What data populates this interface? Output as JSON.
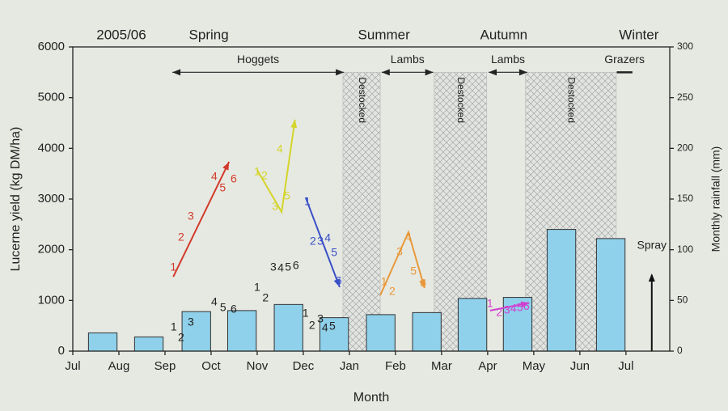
{
  "chart_data": {
    "type": "bar",
    "title": "2005/06",
    "x_label": "Month",
    "y_label": "Lucerne yield (kg DM/ha)",
    "y2_label": "Monthly rainfall (mm)",
    "xlim": [
      0,
      12.95
    ],
    "xticks": [
      {
        "value": 0,
        "label": "Jul"
      },
      {
        "value": 1,
        "label": "Aug"
      },
      {
        "value": 2,
        "label": "Sep"
      },
      {
        "value": 3,
        "label": "Oct"
      },
      {
        "value": 4,
        "label": "Nov"
      },
      {
        "value": 5,
        "label": "Dec"
      },
      {
        "value": 6,
        "label": "Jan"
      },
      {
        "value": 7,
        "label": "Feb"
      },
      {
        "value": 8,
        "label": "Mar"
      },
      {
        "value": 9,
        "label": "Apr"
      },
      {
        "value": 10,
        "label": "May"
      },
      {
        "value": 11,
        "label": "Jun"
      },
      {
        "value": 12,
        "label": "Jul"
      }
    ],
    "ylim": [
      0,
      6000
    ],
    "yticks": [
      0,
      1000,
      2000,
      3000,
      4000,
      5000,
      6000
    ],
    "y2lim": [
      0,
      300
    ],
    "y2ticks": [
      0,
      50,
      100,
      150,
      200,
      250,
      300
    ],
    "seasons": [
      {
        "label": "Spring",
        "x": 2.95
      },
      {
        "label": "Summer",
        "x": 6.75
      },
      {
        "label": "Autumn",
        "x": 9.35
      },
      {
        "label": "Winter",
        "x": 12.28
      }
    ],
    "series": [
      {
        "axis": "y2",
        "color": "#8fd0ea",
        "x": [
          0.65,
          1.65,
          2.68,
          3.67,
          4.68,
          5.67,
          6.68,
          7.68,
          8.67,
          9.65,
          10.6,
          11.67
        ],
        "values": [
          18,
          14,
          39,
          40,
          46,
          33,
          36,
          38,
          52,
          53,
          120,
          111
        ]
      }
    ],
    "destocked": [
      {
        "label": "Destocked",
        "x": [
          5.86,
          6.67
        ],
        "top": 5500
      },
      {
        "label": "Destocked",
        "x": [
          7.84,
          8.98
        ],
        "top": 5500
      },
      {
        "label": "Destocked",
        "x": [
          9.82,
          11.79
        ],
        "top": 5500
      }
    ],
    "periods": [
      {
        "label": "Hoggets",
        "x": [
          2.16,
          5.88
        ],
        "y": 5500,
        "arrows": true
      },
      {
        "label": "Lambs",
        "x": [
          6.7,
          7.82
        ],
        "y": 5500,
        "arrows": true
      },
      {
        "label": "Lambs",
        "x": [
          9.02,
          9.86
        ],
        "y": 5500,
        "arrows": true
      },
      {
        "label": "Grazers",
        "x": [
          11.8,
          12.14
        ],
        "y": 5500,
        "arrows": false
      }
    ],
    "spray": {
      "label": "Spray",
      "x": 12.56,
      "y": [
        0,
        1500
      ]
    },
    "trajectories": [
      {
        "color": "#222222",
        "labels": [
          "1",
          "2",
          "3"
        ],
        "x": [
          2.19,
          2.35,
          2.56
        ],
        "values": [
          463,
          255,
          559
        ]
      },
      {
        "color": "#222222",
        "labels": [
          "4",
          "5",
          "6"
        ],
        "x": [
          3.07,
          3.26,
          3.49
        ],
        "values": [
          958,
          846,
          814
        ]
      },
      {
        "color": "#222222",
        "labels": [
          "1",
          "2"
        ],
        "x": [
          4.0,
          4.18
        ],
        "values": [
          1245,
          1037
        ]
      },
      {
        "color": "#222222",
        "labels": [
          "3",
          "4",
          "5",
          "6"
        ],
        "x": [
          4.35,
          4.51,
          4.67,
          4.84
        ],
        "values": [
          1644,
          1628,
          1644,
          1676
        ]
      },
      {
        "color": "#222222",
        "labels": [
          "1",
          "2",
          "3",
          "4",
          "5"
        ],
        "x": [
          5.05,
          5.19,
          5.37,
          5.47,
          5.63
        ],
        "values": [
          734,
          495,
          622,
          447,
          479
        ]
      },
      {
        "color": "#d23a2a",
        "labels": [
          "1",
          "2",
          "3",
          "4",
          "5",
          "6"
        ],
        "x": [
          2.18,
          2.35,
          2.56,
          3.07,
          3.25,
          3.49
        ],
        "values": [
          1644,
          2234,
          2649,
          3431,
          3208,
          3384
        ],
        "arrow_x": [
          2.18,
          3.39
        ],
        "arrow_y": [
          1468,
          3735
        ]
      },
      {
        "color": "#d4d42a",
        "labels": [
          "1",
          "2",
          "3",
          "4",
          "5"
        ],
        "x": [
          4.0,
          4.16,
          4.39,
          4.49,
          4.65
        ],
        "values": [
          3527,
          3447,
          2841,
          3974,
          3048
        ],
        "arrow_x": [
          4.0,
          4.53,
          4.82
        ],
        "arrow_y": [
          3575,
          2745,
          4565
        ]
      },
      {
        "color": "#3a50c8",
        "labels": [
          "1",
          "2",
          "3",
          "4",
          "5",
          "6"
        ],
        "x": [
          5.09,
          5.21,
          5.37,
          5.53,
          5.67,
          5.77
        ],
        "values": [
          2937,
          2155,
          2155,
          2218,
          1931,
          1373
        ],
        "arrow_x": [
          5.05,
          5.79
        ],
        "arrow_y": [
          3032,
          1261
        ]
      },
      {
        "color": "#e8983a",
        "labels": [
          "1",
          "2",
          "3",
          "4",
          "5",
          "6"
        ],
        "x": [
          6.75,
          6.93,
          7.09,
          7.28,
          7.39,
          7.6
        ],
        "values": [
          1357,
          1165,
          1947,
          2234,
          1564,
          1325
        ],
        "arrow_x": [
          6.67,
          7.28,
          7.63
        ],
        "arrow_y": [
          1101,
          2346,
          1245
        ]
      },
      {
        "color": "#d040d0",
        "labels": [
          "1",
          "2",
          "3",
          "4",
          "5",
          "6"
        ],
        "x": [
          9.05,
          9.25,
          9.42,
          9.56,
          9.7,
          9.84
        ],
        "values": [
          926,
          750,
          800,
          830,
          850,
          870
        ],
        "arrow_x": [
          9.05,
          9.9
        ],
        "arrow_y": [
          800,
          950
        ]
      }
    ]
  }
}
